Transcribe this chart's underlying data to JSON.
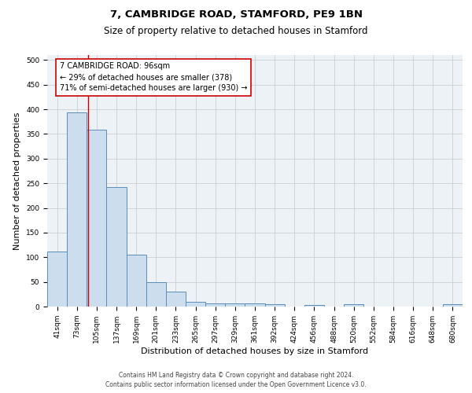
{
  "title1": "7, CAMBRIDGE ROAD, STAMFORD, PE9 1BN",
  "title2": "Size of property relative to detached houses in Stamford",
  "xlabel": "Distribution of detached houses by size in Stamford",
  "ylabel": "Number of detached properties",
  "categories": [
    "41sqm",
    "73sqm",
    "105sqm",
    "137sqm",
    "169sqm",
    "201sqm",
    "233sqm",
    "265sqm",
    "297sqm",
    "329sqm",
    "361sqm",
    "392sqm",
    "424sqm",
    "456sqm",
    "488sqm",
    "520sqm",
    "552sqm",
    "584sqm",
    "616sqm",
    "648sqm",
    "680sqm"
  ],
  "values": [
    112,
    393,
    358,
    243,
    105,
    50,
    30,
    10,
    6,
    6,
    6,
    5,
    0,
    3,
    0,
    4,
    0,
    0,
    0,
    0,
    4
  ],
  "bar_color": "#ccdded",
  "bar_edge_color": "#5b8db8",
  "vline_x": 1.57,
  "vline_color": "#cc0000",
  "annotation_text": "7 CAMBRIDGE ROAD: 96sqm\n← 29% of detached houses are smaller (378)\n71% of semi-detached houses are larger (930) →",
  "annotation_box_color": "white",
  "annotation_box_edge_color": "#cc0000",
  "ylim": [
    0,
    510
  ],
  "yticks": [
    0,
    50,
    100,
    150,
    200,
    250,
    300,
    350,
    400,
    450,
    500
  ],
  "grid_color": "#c8c8c8",
  "bg_color": "#edf2f7",
  "footnote1": "Contains HM Land Registry data © Crown copyright and database right 2024.",
  "footnote2": "Contains public sector information licensed under the Open Government Licence v3.0.",
  "title1_fontsize": 9.5,
  "title2_fontsize": 8.5,
  "label_fontsize": 8,
  "tick_fontsize": 6.5,
  "annot_fontsize": 7,
  "footnote_fontsize": 5.5
}
